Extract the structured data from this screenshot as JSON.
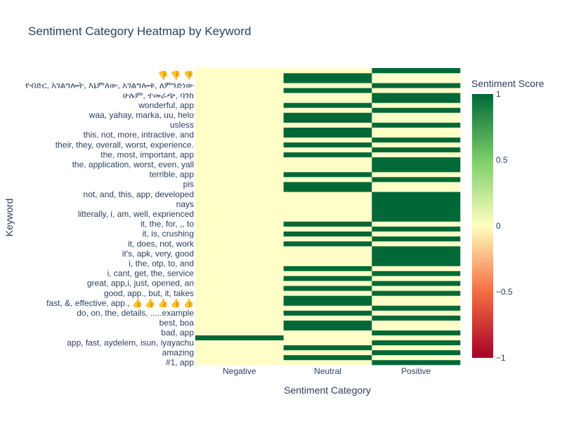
{
  "chart_data": {
    "type": "heatmap",
    "title": "Sentiment Category Heatmap by Keyword",
    "xlabel": "Sentiment Category",
    "ylabel": "Keyword",
    "x_categories": [
      "Negative",
      "Neutral",
      "Positive"
    ],
    "y_tick_labels": [
      "#1, app",
      "amazing",
      "app, fast, aydelem, isun, iyayachu",
      "bad, app",
      "best, boa",
      "do, on, the, details, .....example",
      "fast, &, effective, app., 👍 👍 👍 👍 👍",
      "good, app., but, it, takes",
      "great, app,i, just, opened, an",
      "i, cant, get, the, service",
      "i, the, otp, to, and",
      "it's, apk, very, good",
      "it, does, not, work",
      "it, is, crushing",
      "it, the, for, ,, to",
      "litterally, i, am, well, exprienced",
      "nays",
      "not, and, this, app, developed",
      "pis",
      "terrible, app",
      "the, application, worst, even, yall",
      "the, most, important, app",
      "their, they, overall, worst, experience.",
      "this, not, more, intractive, and",
      "usless",
      "waa, yahay, marka, uu, helo",
      "wonderful, app",
      "ሁሉም, ተመራጭ, ባንክ",
      "የብድር, አገልግሎት, እኔምለው, አገልግሎቱ, ለምንድነው",
      "👎 👎 👎"
    ],
    "rows": 60,
    "positive_rows": [
      0,
      2,
      4,
      6,
      9,
      11,
      14,
      16,
      18,
      20,
      21,
      22,
      23,
      25,
      27,
      29,
      30,
      31,
      32,
      33,
      34,
      37,
      39,
      40,
      41,
      43,
      45,
      48,
      51,
      53,
      54,
      56,
      59
    ],
    "neutral_rows": [
      1,
      3,
      7,
      8,
      10,
      12,
      13,
      15,
      17,
      19,
      24,
      26,
      28,
      35,
      36,
      38,
      42,
      44,
      46,
      47,
      49,
      50,
      52,
      55,
      57,
      58
    ],
    "negative_rows": [
      5
    ],
    "neutral_zero_rows": [
      5
    ],
    "colorscale": [
      {
        "stop": 0,
        "color": "#a50026"
      },
      {
        "stop": 0.25,
        "color": "#f46d43"
      },
      {
        "stop": 0.5,
        "color": "#ffffbf"
      },
      {
        "stop": 0.75,
        "color": "#7ccd6a"
      },
      {
        "stop": 1,
        "color": "#006837"
      }
    ],
    "zmin": -1,
    "zmax": 1,
    "colorbar": {
      "title": "Sentiment Score",
      "tick_labels": [
        "1",
        "0.5",
        "0",
        "−0.5",
        "−1"
      ]
    }
  }
}
